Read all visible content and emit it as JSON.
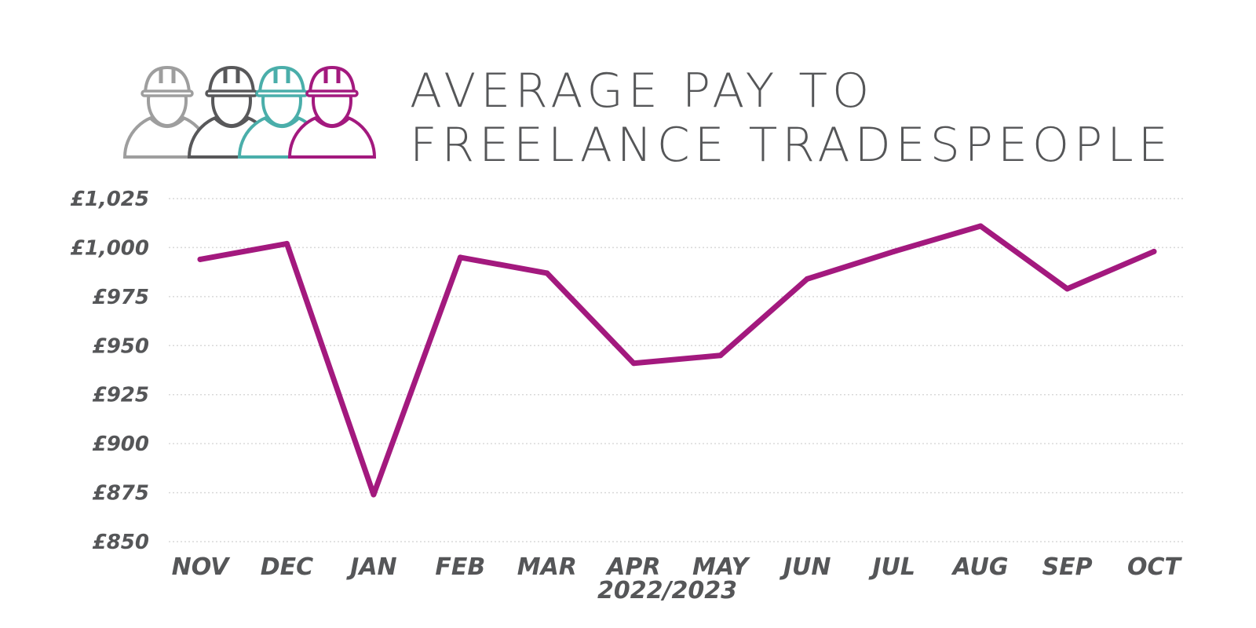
{
  "header": {
    "title_line1": "AVERAGE PAY TO",
    "title_line2": "FREELANCE TRADESPEOPLE"
  },
  "logo": {
    "icon": "tradespeople-hardhat-icon",
    "colors": [
      "#9e9e9e",
      "#58585a",
      "#4aaeaa",
      "#a3197e"
    ]
  },
  "colors": {
    "line": "#a3197e",
    "text": "#555658",
    "grid": "#d9d9d9"
  },
  "chart_data": {
    "type": "line",
    "title": "AVERAGE PAY TO FREELANCE TRADESPEOPLE",
    "xlabel": "2022/2023",
    "ylabel": "",
    "categories": [
      "NOV",
      "DEC",
      "JAN",
      "FEB",
      "MAR",
      "APR",
      "MAY",
      "JUN",
      "JUL",
      "AUG",
      "SEP",
      "OCT"
    ],
    "series": [
      {
        "values": [
          994,
          1002,
          874,
          995,
          987,
          941,
          945,
          984,
          998,
          1011,
          979,
          998
        ]
      }
    ],
    "ylim": [
      850,
      1025
    ],
    "yticks": [
      1025,
      1000,
      975,
      950,
      925,
      900,
      875,
      850
    ],
    "ytick_labels": [
      "£1,025",
      "£1,000",
      "£975",
      "£950",
      "£925",
      "£900",
      "£875",
      "£850"
    ],
    "grid": true,
    "grid_style": "dotted-horizontal",
    "legend": "none"
  }
}
